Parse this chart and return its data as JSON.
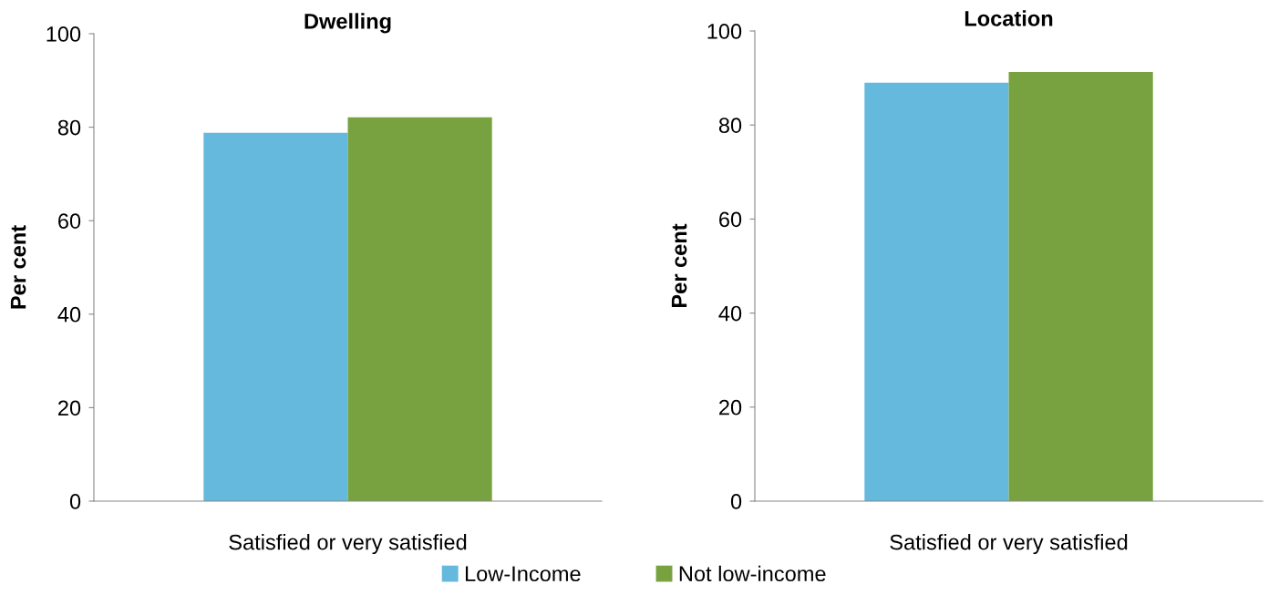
{
  "chart_data": [
    {
      "type": "bar",
      "title": "Dwelling",
      "ylabel": "Per cent",
      "categories": [
        "Satisfied or very satisfied"
      ],
      "ylim": [
        0,
        100
      ],
      "yticks": [
        0,
        20,
        40,
        60,
        80,
        100
      ],
      "grid": false,
      "legend": "bottom",
      "series": [
        {
          "name": "Low-Income",
          "color": "#64b9dc",
          "values": [
            78.8
          ]
        },
        {
          "name": "Not low-income",
          "color": "#78a240",
          "values": [
            82.1
          ]
        }
      ]
    },
    {
      "type": "bar",
      "title": "Location",
      "ylabel": "Per cent",
      "categories": [
        "Satisfied or very satisfied"
      ],
      "ylim": [
        0,
        100
      ],
      "yticks": [
        0,
        20,
        40,
        60,
        80,
        100
      ],
      "grid": false,
      "legend": "bottom",
      "series": [
        {
          "name": "Low-Income",
          "color": "#64b9dc",
          "values": [
            89.0
          ]
        },
        {
          "name": "Not low-income",
          "color": "#78a240",
          "values": [
            91.3
          ]
        }
      ]
    }
  ]
}
